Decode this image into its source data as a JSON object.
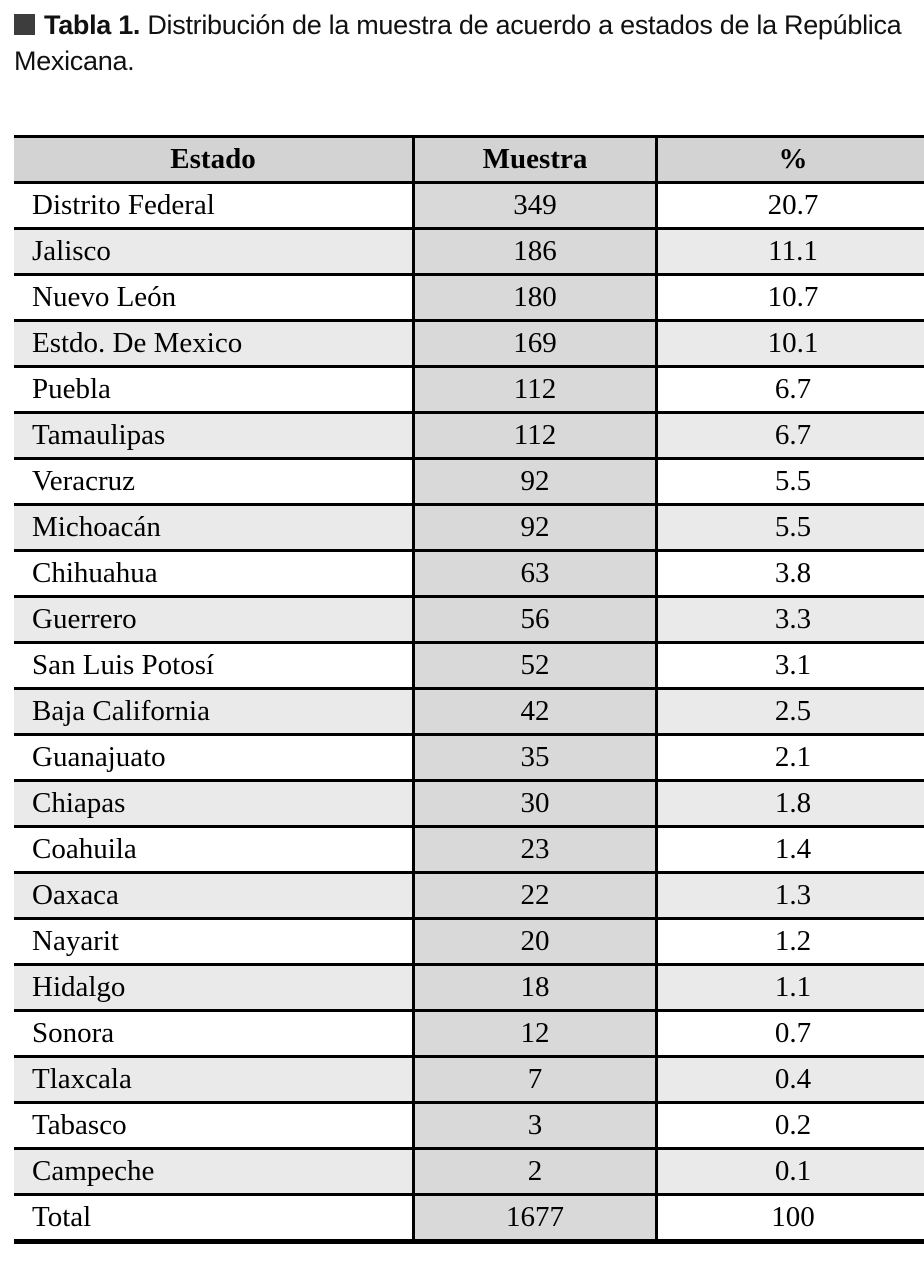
{
  "caption": {
    "label": "Tabla 1.",
    "text": " Distribución de la muestra de acuerdo a estados de la República Mexicana."
  },
  "table": {
    "columns": [
      "Estado",
      "Muestra",
      "%"
    ],
    "rows": [
      [
        "Distrito Federal",
        "349",
        "20.7"
      ],
      [
        "Jalisco",
        "186",
        "11.1"
      ],
      [
        "Nuevo León",
        "180",
        "10.7"
      ],
      [
        "Estdo. De Mexico",
        "169",
        "10.1"
      ],
      [
        "Puebla",
        "112",
        "6.7"
      ],
      [
        "Tamaulipas",
        "112",
        "6.7"
      ],
      [
        "Veracruz",
        "92",
        "5.5"
      ],
      [
        "Michoacán",
        "92",
        "5.5"
      ],
      [
        "Chihuahua",
        "63",
        "3.8"
      ],
      [
        "Guerrero",
        "56",
        "3.3"
      ],
      [
        "San Luis Potosí",
        "52",
        "3.1"
      ],
      [
        "Baja California",
        "42",
        "2.5"
      ],
      [
        "Guanajuato",
        "35",
        "2.1"
      ],
      [
        "Chiapas",
        "30",
        "1.8"
      ],
      [
        "Coahuila",
        "23",
        "1.4"
      ],
      [
        "Oaxaca",
        "22",
        "1.3"
      ],
      [
        "Nayarit",
        "20",
        "1.2"
      ],
      [
        "Hidalgo",
        "18",
        "1.1"
      ],
      [
        "Sonora",
        "12",
        "0.7"
      ],
      [
        "Tlaxcala",
        "7",
        "0.4"
      ],
      [
        "Tabasco",
        "3",
        "0.2"
      ],
      [
        "Campeche",
        "2",
        "0.1"
      ],
      [
        "Total",
        "1677",
        "100"
      ]
    ]
  },
  "chart_data": {
    "type": "table",
    "title": "Tabla 1. Distribución de la muestra de acuerdo a estados de la República Mexicana.",
    "columns": [
      "Estado",
      "Muestra",
      "%"
    ],
    "categories": [
      "Distrito Federal",
      "Jalisco",
      "Nuevo León",
      "Estdo. De Mexico",
      "Puebla",
      "Tamaulipas",
      "Veracruz",
      "Michoacán",
      "Chihuahua",
      "Guerrero",
      "San Luis Potosí",
      "Baja California",
      "Guanajuato",
      "Chiapas",
      "Coahuila",
      "Oaxaca",
      "Nayarit",
      "Hidalgo",
      "Sonora",
      "Tlaxcala",
      "Tabasco",
      "Campeche"
    ],
    "series": [
      {
        "name": "Muestra",
        "values": [
          349,
          186,
          180,
          169,
          112,
          112,
          92,
          92,
          63,
          56,
          52,
          42,
          35,
          30,
          23,
          22,
          20,
          18,
          12,
          7,
          3,
          2
        ]
      },
      {
        "name": "%",
        "values": [
          20.7,
          11.1,
          10.7,
          10.1,
          6.7,
          6.7,
          5.5,
          5.5,
          3.8,
          3.3,
          3.1,
          2.5,
          2.1,
          1.8,
          1.4,
          1.3,
          1.2,
          1.1,
          0.7,
          0.4,
          0.2,
          0.1
        ]
      }
    ],
    "total": {
      "Muestra": 1677,
      "%": 100
    }
  },
  "colors": {
    "header_bg": "#d3d3d3",
    "muestra_column_bg": "#d9d9d9",
    "alt_row_bg": "#eaeaea",
    "border": "#000000",
    "caption_square": "#3d3d3d"
  }
}
